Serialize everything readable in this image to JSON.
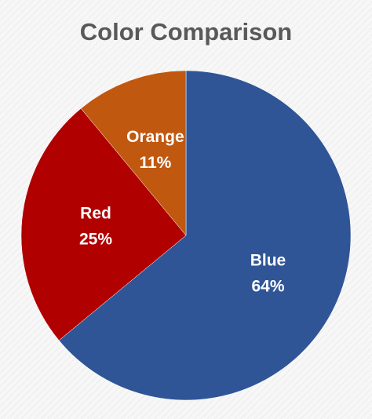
{
  "chart_data": {
    "type": "pie",
    "title": "Color Comparison",
    "categories": [
      "Blue",
      "Red",
      "Orange"
    ],
    "values": [
      64,
      25,
      11
    ],
    "value_labels": [
      "64%",
      "25%",
      "11%"
    ],
    "colors": [
      "#2f5597",
      "#b00000",
      "#c0580f"
    ]
  }
}
